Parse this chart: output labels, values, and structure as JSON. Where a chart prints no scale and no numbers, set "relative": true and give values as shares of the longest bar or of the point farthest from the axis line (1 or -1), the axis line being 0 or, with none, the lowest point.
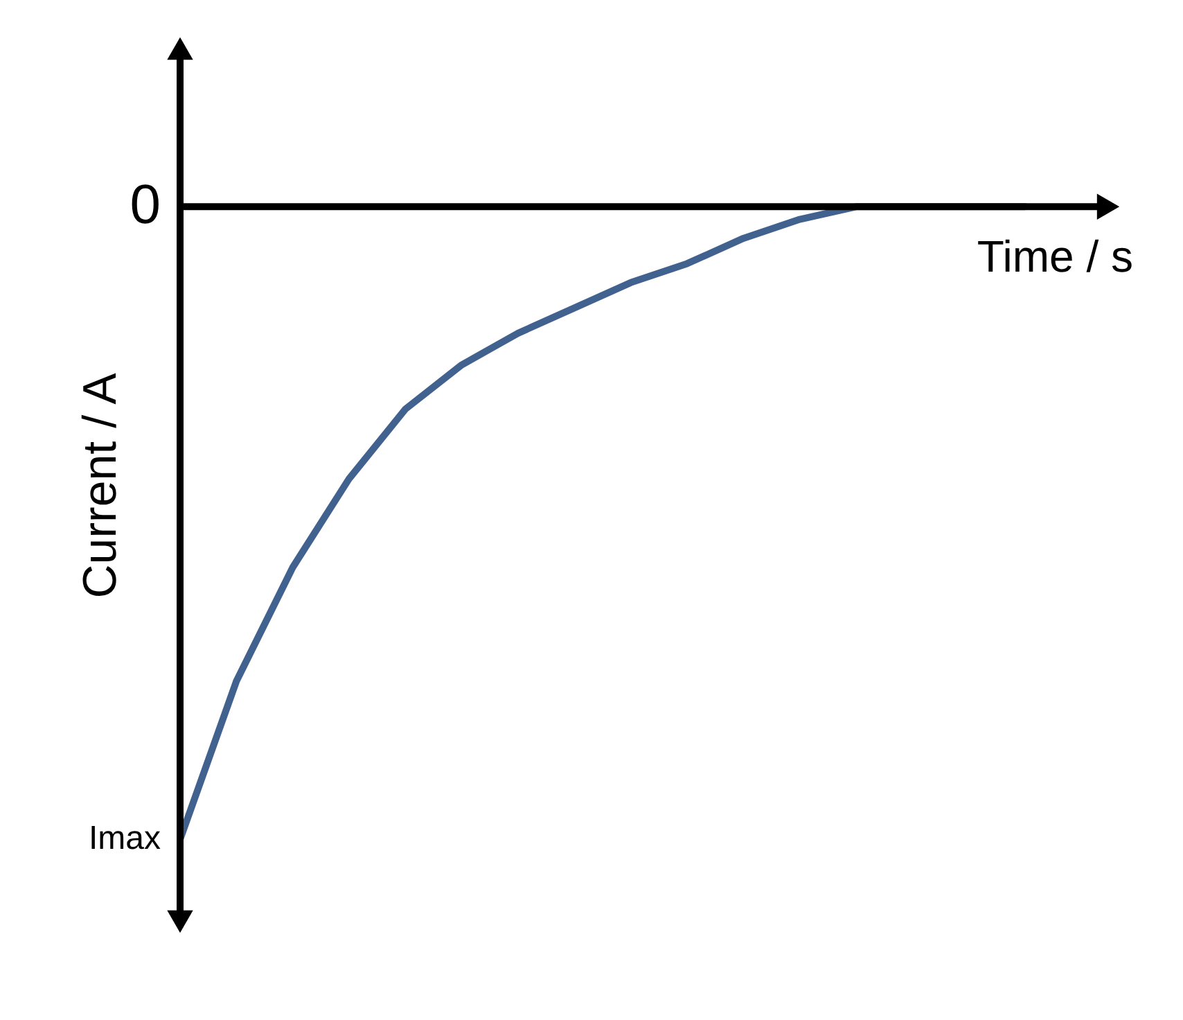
{
  "chart_data": {
    "type": "line",
    "relative": true,
    "xlabel": "Time / s",
    "ylabel": "Current / A",
    "categories": [
      null,
      null,
      null,
      null,
      null,
      null,
      null,
      null,
      null,
      null,
      null,
      null,
      null,
      null,
      null,
      null
    ],
    "series": [
      {
        "color": "#41628f",
        "values": [
          -1,
          -0.75,
          -0.57,
          -0.43,
          -0.32,
          -0.25,
          -0.2,
          -0.16,
          -0.12,
          -0.09,
          -0.05,
          -0.02,
          0,
          0,
          0,
          0
        ]
      }
    ],
    "annotations": [
      "0",
      "Imax"
    ],
    "grid": false,
    "legend": false,
    "marker": "none",
    "line_style": "solid"
  }
}
